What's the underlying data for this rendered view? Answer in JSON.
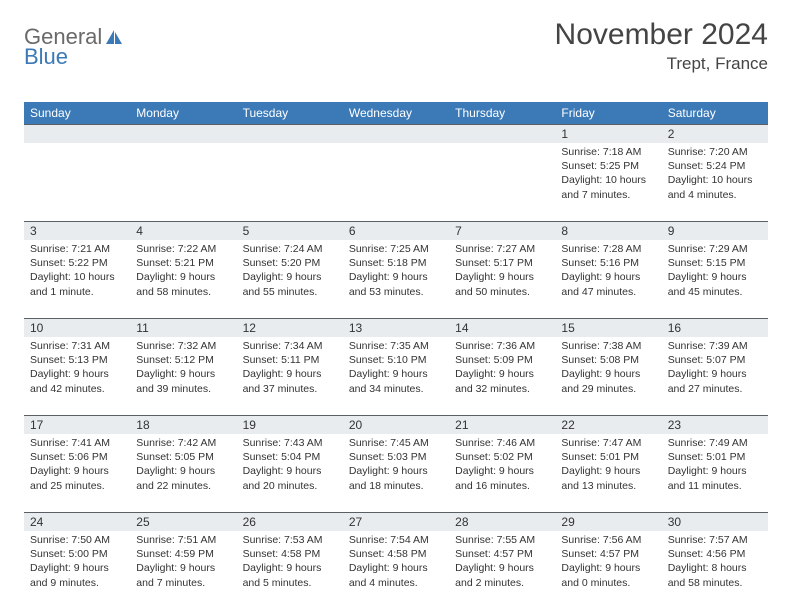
{
  "logo": {
    "text1": "General",
    "text2": "Blue"
  },
  "title": {
    "month": "November 2024",
    "location": "Trept, France"
  },
  "dayNames": [
    "Sunday",
    "Monday",
    "Tuesday",
    "Wednesday",
    "Thursday",
    "Friday",
    "Saturday"
  ],
  "colors": {
    "headerBg": "#3b79b7",
    "headerText": "#ffffff",
    "dayNumBg": "#e8ecef",
    "textColor": "#333333",
    "logoGray": "#6a6a6a",
    "logoBlue": "#3b79b7"
  },
  "weeks": [
    [
      null,
      null,
      null,
      null,
      null,
      {
        "n": "1",
        "sunrise": "Sunrise: 7:18 AM",
        "sunset": "Sunset: 5:25 PM",
        "daylight": "Daylight: 10 hours and 7 minutes."
      },
      {
        "n": "2",
        "sunrise": "Sunrise: 7:20 AM",
        "sunset": "Sunset: 5:24 PM",
        "daylight": "Daylight: 10 hours and 4 minutes."
      }
    ],
    [
      {
        "n": "3",
        "sunrise": "Sunrise: 7:21 AM",
        "sunset": "Sunset: 5:22 PM",
        "daylight": "Daylight: 10 hours and 1 minute."
      },
      {
        "n": "4",
        "sunrise": "Sunrise: 7:22 AM",
        "sunset": "Sunset: 5:21 PM",
        "daylight": "Daylight: 9 hours and 58 minutes."
      },
      {
        "n": "5",
        "sunrise": "Sunrise: 7:24 AM",
        "sunset": "Sunset: 5:20 PM",
        "daylight": "Daylight: 9 hours and 55 minutes."
      },
      {
        "n": "6",
        "sunrise": "Sunrise: 7:25 AM",
        "sunset": "Sunset: 5:18 PM",
        "daylight": "Daylight: 9 hours and 53 minutes."
      },
      {
        "n": "7",
        "sunrise": "Sunrise: 7:27 AM",
        "sunset": "Sunset: 5:17 PM",
        "daylight": "Daylight: 9 hours and 50 minutes."
      },
      {
        "n": "8",
        "sunrise": "Sunrise: 7:28 AM",
        "sunset": "Sunset: 5:16 PM",
        "daylight": "Daylight: 9 hours and 47 minutes."
      },
      {
        "n": "9",
        "sunrise": "Sunrise: 7:29 AM",
        "sunset": "Sunset: 5:15 PM",
        "daylight": "Daylight: 9 hours and 45 minutes."
      }
    ],
    [
      {
        "n": "10",
        "sunrise": "Sunrise: 7:31 AM",
        "sunset": "Sunset: 5:13 PM",
        "daylight": "Daylight: 9 hours and 42 minutes."
      },
      {
        "n": "11",
        "sunrise": "Sunrise: 7:32 AM",
        "sunset": "Sunset: 5:12 PM",
        "daylight": "Daylight: 9 hours and 39 minutes."
      },
      {
        "n": "12",
        "sunrise": "Sunrise: 7:34 AM",
        "sunset": "Sunset: 5:11 PM",
        "daylight": "Daylight: 9 hours and 37 minutes."
      },
      {
        "n": "13",
        "sunrise": "Sunrise: 7:35 AM",
        "sunset": "Sunset: 5:10 PM",
        "daylight": "Daylight: 9 hours and 34 minutes."
      },
      {
        "n": "14",
        "sunrise": "Sunrise: 7:36 AM",
        "sunset": "Sunset: 5:09 PM",
        "daylight": "Daylight: 9 hours and 32 minutes."
      },
      {
        "n": "15",
        "sunrise": "Sunrise: 7:38 AM",
        "sunset": "Sunset: 5:08 PM",
        "daylight": "Daylight: 9 hours and 29 minutes."
      },
      {
        "n": "16",
        "sunrise": "Sunrise: 7:39 AM",
        "sunset": "Sunset: 5:07 PM",
        "daylight": "Daylight: 9 hours and 27 minutes."
      }
    ],
    [
      {
        "n": "17",
        "sunrise": "Sunrise: 7:41 AM",
        "sunset": "Sunset: 5:06 PM",
        "daylight": "Daylight: 9 hours and 25 minutes."
      },
      {
        "n": "18",
        "sunrise": "Sunrise: 7:42 AM",
        "sunset": "Sunset: 5:05 PM",
        "daylight": "Daylight: 9 hours and 22 minutes."
      },
      {
        "n": "19",
        "sunrise": "Sunrise: 7:43 AM",
        "sunset": "Sunset: 5:04 PM",
        "daylight": "Daylight: 9 hours and 20 minutes."
      },
      {
        "n": "20",
        "sunrise": "Sunrise: 7:45 AM",
        "sunset": "Sunset: 5:03 PM",
        "daylight": "Daylight: 9 hours and 18 minutes."
      },
      {
        "n": "21",
        "sunrise": "Sunrise: 7:46 AM",
        "sunset": "Sunset: 5:02 PM",
        "daylight": "Daylight: 9 hours and 16 minutes."
      },
      {
        "n": "22",
        "sunrise": "Sunrise: 7:47 AM",
        "sunset": "Sunset: 5:01 PM",
        "daylight": "Daylight: 9 hours and 13 minutes."
      },
      {
        "n": "23",
        "sunrise": "Sunrise: 7:49 AM",
        "sunset": "Sunset: 5:01 PM",
        "daylight": "Daylight: 9 hours and 11 minutes."
      }
    ],
    [
      {
        "n": "24",
        "sunrise": "Sunrise: 7:50 AM",
        "sunset": "Sunset: 5:00 PM",
        "daylight": "Daylight: 9 hours and 9 minutes."
      },
      {
        "n": "25",
        "sunrise": "Sunrise: 7:51 AM",
        "sunset": "Sunset: 4:59 PM",
        "daylight": "Daylight: 9 hours and 7 minutes."
      },
      {
        "n": "26",
        "sunrise": "Sunrise: 7:53 AM",
        "sunset": "Sunset: 4:58 PM",
        "daylight": "Daylight: 9 hours and 5 minutes."
      },
      {
        "n": "27",
        "sunrise": "Sunrise: 7:54 AM",
        "sunset": "Sunset: 4:58 PM",
        "daylight": "Daylight: 9 hours and 4 minutes."
      },
      {
        "n": "28",
        "sunrise": "Sunrise: 7:55 AM",
        "sunset": "Sunset: 4:57 PM",
        "daylight": "Daylight: 9 hours and 2 minutes."
      },
      {
        "n": "29",
        "sunrise": "Sunrise: 7:56 AM",
        "sunset": "Sunset: 4:57 PM",
        "daylight": "Daylight: 9 hours and 0 minutes."
      },
      {
        "n": "30",
        "sunrise": "Sunrise: 7:57 AM",
        "sunset": "Sunset: 4:56 PM",
        "daylight": "Daylight: 8 hours and 58 minutes."
      }
    ]
  ]
}
